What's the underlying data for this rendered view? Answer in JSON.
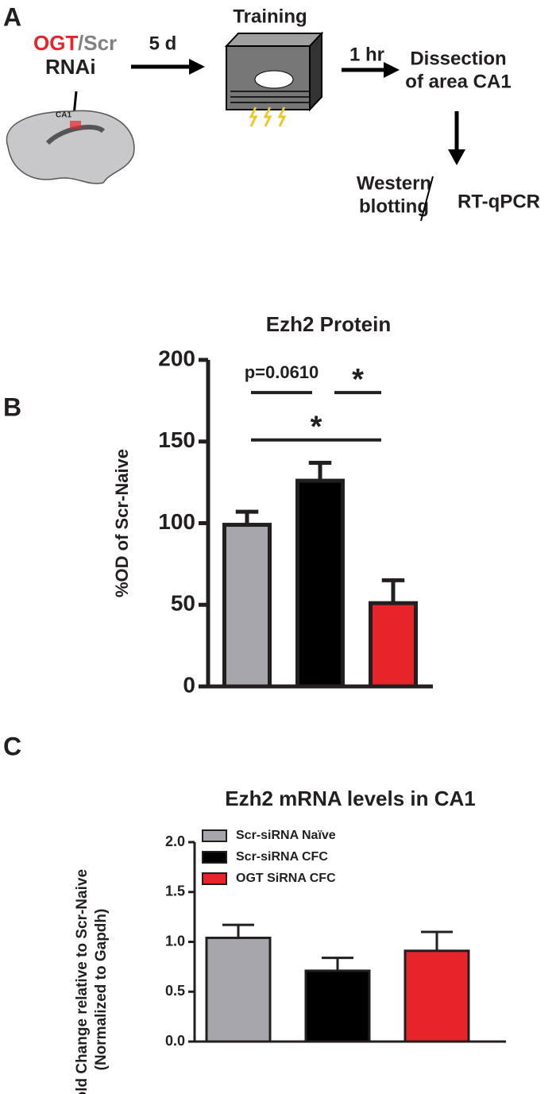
{
  "panels": {
    "a": "A",
    "b": "B",
    "c": "C"
  },
  "diagram": {
    "ogt": "OGT",
    "scr": "/Scr",
    "rnai": "RNAi",
    "ca1": "CA1",
    "step1": "5 d",
    "training": "Training",
    "step2": "1 hr",
    "dissection": [
      "Dissection",
      "of area CA1"
    ],
    "western": [
      "Western",
      "blotting"
    ],
    "rtqpcr": "RT-qPCR"
  },
  "chart_data": [
    {
      "type": "bar",
      "title": "Ezh2 Protein",
      "y_label": "%OD of  Scr-Naive",
      "categories": [
        null,
        null,
        null
      ],
      "values": [
        99,
        126,
        51
      ],
      "errors": [
        8,
        11,
        14
      ],
      "colors": [
        "#a7a7ab",
        "#000000",
        "#e8242b"
      ],
      "ylim": [
        0,
        200
      ],
      "yticks": [
        0,
        50,
        100,
        150,
        200
      ],
      "annotations": [
        "p=0.0610",
        "*",
        "*"
      ]
    },
    {
      "type": "bar",
      "title": "Ezh2 mRNA levels in CA1",
      "y_label": [
        "Fold Change relative to Scr-Naive",
        "(Normalized to Gapdh)"
      ],
      "categories": [
        null,
        null,
        null
      ],
      "values": [
        1.04,
        0.71,
        0.91
      ],
      "errors": [
        0.13,
        0.13,
        0.19
      ],
      "colors": [
        "#a7a7ab",
        "#000000",
        "#e8242b"
      ],
      "legend_labels": [
        "Scr-siRNA Naïve",
        "Scr-siRNA CFC",
        "OGT SiRNA CFC"
      ],
      "ylim": [
        0,
        2
      ],
      "yticks": [
        {
          "value": 0,
          "label": "0.0"
        },
        {
          "value": 0.5,
          "label": "0.5"
        },
        {
          "value": 1,
          "label": "1.0"
        },
        {
          "value": 1.5,
          "label": "1.5"
        },
        {
          "value": 2,
          "label": "2.0"
        }
      ]
    }
  ]
}
